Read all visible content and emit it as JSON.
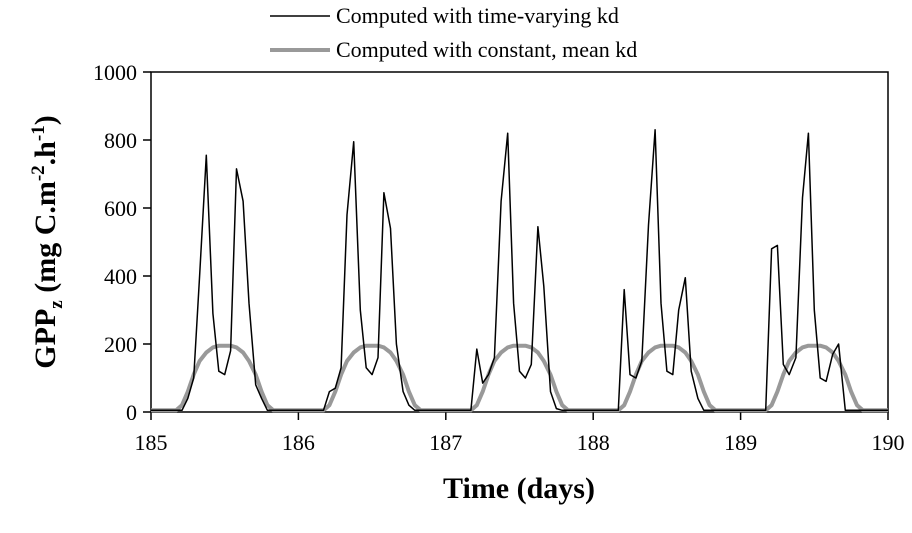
{
  "chart_data": {
    "type": "line",
    "title": "",
    "xlabel": "Time (days)",
    "ylabel": {
      "main": "GPP",
      "sub": "z",
      "unit_a": " (mg C.m",
      "sup1": "-2",
      "unit_b": ".h",
      "sup2": "-1",
      "unit_c": ")"
    },
    "xlim": [
      185,
      190
    ],
    "ylim": [
      0,
      1000
    ],
    "x_ticks": [
      185,
      186,
      187,
      188,
      189,
      190
    ],
    "y_ticks": [
      0,
      200,
      400,
      600,
      800,
      1000
    ],
    "grid": false,
    "legend_position": "top-center",
    "series": [
      {
        "name": "Computed with time-varying kd",
        "color": "#000000",
        "style": "thin",
        "x": [
          185.0,
          185.21,
          185.25,
          185.29,
          185.33,
          185.375,
          185.42,
          185.46,
          185.5,
          185.54,
          185.58,
          185.625,
          185.665,
          185.71,
          185.75,
          185.79,
          185.83,
          185.875,
          186.0,
          186.17,
          186.21,
          186.25,
          186.29,
          186.33,
          186.375,
          186.42,
          186.46,
          186.5,
          186.54,
          186.58,
          186.625,
          186.665,
          186.71,
          186.75,
          186.79,
          186.83,
          186.875,
          187.0,
          187.17,
          187.21,
          187.25,
          187.29,
          187.33,
          187.375,
          187.42,
          187.46,
          187.5,
          187.54,
          187.58,
          187.625,
          187.665,
          187.71,
          187.75,
          187.79,
          187.83,
          187.875,
          188.0,
          188.17,
          188.21,
          188.25,
          188.29,
          188.33,
          188.375,
          188.42,
          188.46,
          188.5,
          188.54,
          188.58,
          188.625,
          188.665,
          188.71,
          188.75,
          188.79,
          188.83,
          188.875,
          189.0,
          189.17,
          189.21,
          189.25,
          189.29,
          189.33,
          189.375,
          189.42,
          189.46,
          189.5,
          189.54,
          189.58,
          189.625,
          189.665,
          189.71,
          189.75,
          189.79,
          189.83,
          189.875,
          190.0
        ],
        "y": [
          5,
          5,
          40,
          100,
          400,
          755,
          290,
          120,
          110,
          180,
          715,
          620,
          320,
          80,
          40,
          5,
          5,
          5,
          5,
          5,
          60,
          70,
          130,
          580,
          795,
          300,
          130,
          110,
          160,
          645,
          540,
          200,
          60,
          20,
          5,
          5,
          5,
          5,
          5,
          185,
          85,
          110,
          160,
          620,
          820,
          320,
          120,
          100,
          140,
          545,
          370,
          60,
          10,
          5,
          5,
          5,
          5,
          5,
          360,
          110,
          100,
          150,
          550,
          830,
          320,
          120,
          110,
          300,
          395,
          120,
          40,
          5,
          5,
          5,
          5,
          5,
          5,
          480,
          490,
          140,
          110,
          160,
          630,
          820,
          300,
          100,
          90,
          170,
          200,
          5,
          5,
          5,
          5,
          5,
          5
        ]
      },
      {
        "name": "Computed with constant, mean kd",
        "color": "#999999",
        "style": "thick",
        "x": [
          185.0,
          185.17,
          185.21,
          185.25,
          185.29,
          185.33,
          185.375,
          185.42,
          185.46,
          185.5,
          185.54,
          185.58,
          185.625,
          185.665,
          185.71,
          185.75,
          185.79,
          185.83,
          185.875,
          186.0,
          186.17,
          186.21,
          186.25,
          186.29,
          186.33,
          186.375,
          186.42,
          186.46,
          186.5,
          186.54,
          186.58,
          186.625,
          186.665,
          186.71,
          186.75,
          186.79,
          186.83,
          186.875,
          187.0,
          187.17,
          187.21,
          187.25,
          187.29,
          187.33,
          187.375,
          187.42,
          187.46,
          187.5,
          187.54,
          187.58,
          187.625,
          187.665,
          187.71,
          187.75,
          187.79,
          187.83,
          187.875,
          188.0,
          188.17,
          188.21,
          188.25,
          188.29,
          188.33,
          188.375,
          188.42,
          188.46,
          188.5,
          188.54,
          188.58,
          188.625,
          188.665,
          188.71,
          188.75,
          188.79,
          188.83,
          188.875,
          189.0,
          189.17,
          189.21,
          189.25,
          189.29,
          189.33,
          189.375,
          189.42,
          189.46,
          189.5,
          189.54,
          189.58,
          189.625,
          189.665,
          189.71,
          189.75,
          189.79,
          189.83,
          189.875,
          190.0
        ],
        "y": [
          5,
          5,
          20,
          60,
          110,
          150,
          175,
          190,
          195,
          195,
          195,
          190,
          175,
          150,
          110,
          60,
          20,
          5,
          5,
          5,
          5,
          20,
          60,
          110,
          150,
          175,
          190,
          195,
          195,
          195,
          190,
          175,
          150,
          110,
          60,
          20,
          5,
          5,
          5,
          5,
          20,
          60,
          110,
          150,
          175,
          190,
          195,
          195,
          195,
          190,
          175,
          150,
          110,
          60,
          20,
          5,
          5,
          5,
          5,
          20,
          60,
          110,
          150,
          175,
          190,
          195,
          195,
          195,
          190,
          175,
          150,
          110,
          60,
          20,
          5,
          5,
          5,
          5,
          20,
          60,
          110,
          150,
          175,
          190,
          195,
          195,
          195,
          190,
          175,
          150,
          110,
          60,
          20,
          5,
          5,
          5
        ]
      }
    ]
  }
}
